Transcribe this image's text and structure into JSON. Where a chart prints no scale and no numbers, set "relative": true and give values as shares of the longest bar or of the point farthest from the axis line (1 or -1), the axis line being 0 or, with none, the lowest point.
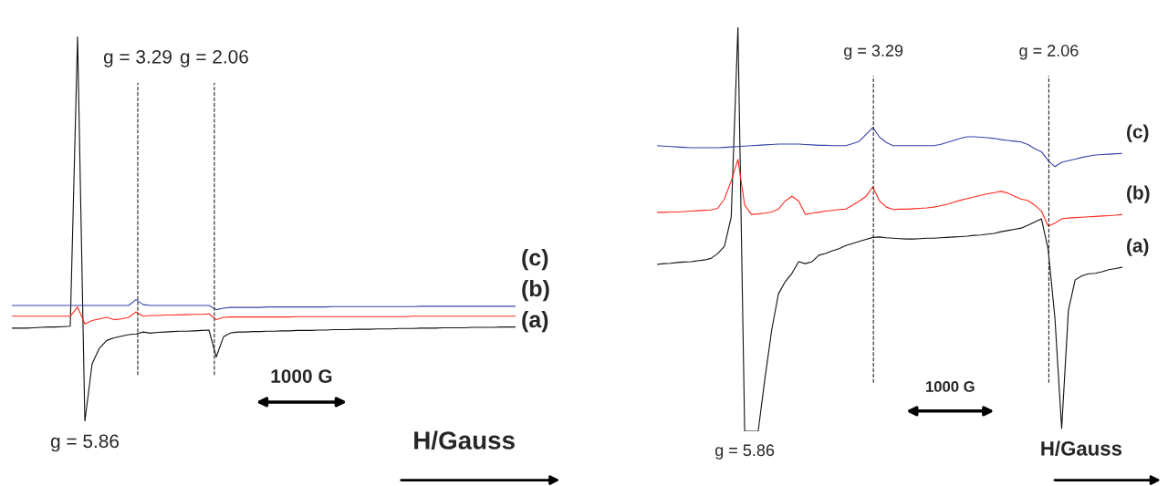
{
  "chart_data": [
    {
      "type": "line",
      "relative": true,
      "xlabel": "H/Gauss",
      "line_style": "solid",
      "categories": [
        null,
        null,
        null,
        null,
        null,
        null,
        null,
        null,
        null,
        null,
        null,
        null,
        null,
        null,
        null,
        null,
        null,
        null,
        null,
        null,
        null,
        null,
        null,
        null,
        null,
        null,
        null,
        null,
        null,
        null,
        null,
        null,
        null,
        null,
        null,
        null,
        null,
        null,
        null,
        null,
        null,
        null,
        null,
        null,
        null,
        null,
        null,
        null,
        null,
        null,
        null,
        null,
        null,
        null,
        null,
        null,
        null,
        null,
        null,
        null,
        null,
        null,
        null,
        null,
        null,
        null,
        null,
        null,
        null,
        null
      ],
      "series": [
        {
          "name": "(a)",
          "color": "#111111",
          "values": [
            0.242,
            0.242,
            0.242,
            0.243,
            0.244,
            0.245,
            0.245,
            0.246,
            0.247,
            1,
            0,
            0.15,
            0.19,
            0.21,
            0.217,
            0.221,
            0.225,
            0.227,
            0.232,
            0.229,
            0.231,
            0.232,
            0.233,
            0.234,
            0.234,
            0.235,
            0.236,
            0.237,
            0.167,
            0.22,
            0.23,
            0.232,
            0.232,
            0.233,
            0.233,
            0.234,
            0.234,
            0.235,
            0.235,
            0.236,
            0.236,
            0.236,
            0.237,
            0.237,
            0.238,
            0.238,
            0.238,
            0.239,
            0.239,
            0.239,
            0.24,
            0.24,
            0.24,
            0.241,
            0.241,
            0.241,
            0.242,
            0.242,
            0.242,
            0.243,
            0.243,
            0.243,
            0.243,
            0.244,
            0.244,
            0.244,
            0.244,
            0.245,
            0.245,
            0.245
          ]
        },
        {
          "name": "(b)",
          "color": "#ff2a1f",
          "values": [
            0.273,
            0.273,
            0.273,
            0.273,
            0.273,
            0.273,
            0.273,
            0.273,
            0.273,
            0.297,
            0.253,
            0.262,
            0.266,
            0.27,
            0.264,
            0.266,
            0.27,
            0.284,
            0.273,
            0.275,
            0.275,
            0.276,
            0.276,
            0.277,
            0.277,
            0.278,
            0.278,
            0.279,
            0.264,
            0.27,
            0.271,
            0.271,
            0.271,
            0.271,
            0.271,
            0.271,
            0.271,
            0.271,
            0.271,
            0.272,
            0.272,
            0.272,
            0.272,
            0.272,
            0.272,
            0.272,
            0.272,
            0.272,
            0.272,
            0.272,
            0.272,
            0.272,
            0.272,
            0.272,
            0.272,
            0.273,
            0.273,
            0.273,
            0.273,
            0.273,
            0.273,
            0.273,
            0.273,
            0.273,
            0.273,
            0.273,
            0.273,
            0.273,
            0.273,
            0.273
          ]
        },
        {
          "name": "(c)",
          "color": "#3344aa",
          "values": [
            0.301,
            0.301,
            0.301,
            0.301,
            0.301,
            0.301,
            0.301,
            0.301,
            0.301,
            0.301,
            0.301,
            0.301,
            0.301,
            0.301,
            0.301,
            0.301,
            0.301,
            0.316,
            0.303,
            0.301,
            0.301,
            0.301,
            0.301,
            0.301,
            0.301,
            0.301,
            0.301,
            0.301,
            0.29,
            0.294,
            0.296,
            0.296,
            0.296,
            0.296,
            0.296,
            0.297,
            0.297,
            0.297,
            0.297,
            0.297,
            0.297,
            0.297,
            0.297,
            0.297,
            0.298,
            0.298,
            0.298,
            0.298,
            0.298,
            0.298,
            0.298,
            0.298,
            0.298,
            0.298,
            0.298,
            0.298,
            0.299,
            0.299,
            0.299,
            0.299,
            0.299,
            0.299,
            0.299,
            0.299,
            0.299,
            0.299,
            0.299,
            0.299,
            0.299,
            0.299
          ]
        }
      ],
      "annotations": [
        "g = 3.29",
        "g = 2.06",
        {
          "text": "g = 5.86",
          "y": 0
        },
        "1000 G"
      ]
    },
    {
      "type": "line",
      "relative": true,
      "xlabel": "H/Gauss",
      "line_style": "solid",
      "categories": [
        null,
        null,
        null,
        null,
        null,
        null,
        null,
        null,
        null,
        null,
        null,
        null,
        null,
        null,
        null,
        null,
        null,
        null,
        null,
        null,
        null,
        null,
        null,
        null,
        null,
        null,
        null,
        null,
        null,
        null,
        null,
        null,
        null,
        null,
        null,
        null,
        null,
        null,
        null,
        null,
        null,
        null,
        null,
        null,
        null,
        null,
        null,
        null,
        null,
        null,
        null,
        null,
        null,
        null,
        null,
        null,
        null,
        null,
        null,
        null,
        null,
        null,
        null,
        null,
        null,
        null,
        null,
        null,
        null,
        null
      ],
      "series": [
        {
          "name": "(a)",
          "color": "#111111",
          "values": [
            0.413,
            0.415,
            0.416,
            0.418,
            0.419,
            0.42,
            0.422,
            0.424,
            0.428,
            0.44,
            0.458,
            0.53,
            1,
            0,
            0,
            0,
            0.13,
            0.25,
            0.34,
            0.37,
            0.391,
            0.42,
            0.415,
            0.42,
            0.436,
            0.44,
            0.447,
            0.452,
            0.46,
            0.465,
            0.47,
            0.475,
            0.48,
            0.481,
            0.479,
            0.478,
            0.477,
            0.476,
            0.476,
            0.477,
            0.478,
            0.478,
            0.479,
            0.48,
            0.481,
            0.482,
            0.483,
            0.485,
            0.486,
            0.488,
            0.49,
            0.494,
            0.497,
            0.5,
            0.503,
            0.51,
            0.518,
            0.526,
            0.45,
            0.28,
            0.007,
            0.3,
            0.375,
            0.385,
            0.39,
            0.391,
            0.395,
            0.4,
            0.403,
            0.406
          ]
        },
        {
          "name": "(b)",
          "color": "#ff2a1f",
          "values": [
            0.542,
            0.542,
            0.543,
            0.543,
            0.544,
            0.545,
            0.546,
            0.547,
            0.548,
            0.552,
            0.575,
            0.62,
            0.673,
            0.56,
            0.537,
            0.538,
            0.54,
            0.543,
            0.55,
            0.57,
            0.582,
            0.57,
            0.537,
            0.54,
            0.542,
            0.545,
            0.547,
            0.549,
            0.55,
            0.56,
            0.57,
            0.582,
            0.605,
            0.57,
            0.555,
            0.549,
            0.55,
            0.55,
            0.551,
            0.552,
            0.553,
            0.555,
            0.558,
            0.562,
            0.567,
            0.572,
            0.576,
            0.58,
            0.584,
            0.588,
            0.591,
            0.594,
            0.59,
            0.582,
            0.575,
            0.571,
            0.56,
            0.545,
            0.508,
            0.515,
            0.526,
            0.528,
            0.529,
            0.53,
            0.531,
            0.532,
            0.533,
            0.534,
            0.535,
            0.537
          ]
        },
        {
          "name": "(c)",
          "color": "#3344aa",
          "values": [
            0.707,
            0.706,
            0.705,
            0.704,
            0.703,
            0.702,
            0.702,
            0.702,
            0.702,
            0.702,
            0.703,
            0.704,
            0.705,
            0.706,
            0.707,
            0.708,
            0.709,
            0.71,
            0.711,
            0.711,
            0.711,
            0.711,
            0.71,
            0.709,
            0.708,
            0.708,
            0.707,
            0.707,
            0.707,
            0.712,
            0.718,
            0.735,
            0.752,
            0.728,
            0.715,
            0.707,
            0.707,
            0.707,
            0.707,
            0.707,
            0.707,
            0.707,
            0.71,
            0.715,
            0.72,
            0.725,
            0.729,
            0.729,
            0.728,
            0.727,
            0.725,
            0.722,
            0.72,
            0.718,
            0.716,
            0.71,
            0.7,
            0.692,
            0.67,
            0.655,
            0.666,
            0.67,
            0.674,
            0.678,
            0.681,
            0.684,
            0.685,
            0.686,
            0.687,
            0.688
          ]
        }
      ],
      "annotations": [
        "g = 3.29",
        "g = 2.06",
        {
          "text": "g = 5.86",
          "y": 0
        },
        "1000 G"
      ]
    }
  ]
}
